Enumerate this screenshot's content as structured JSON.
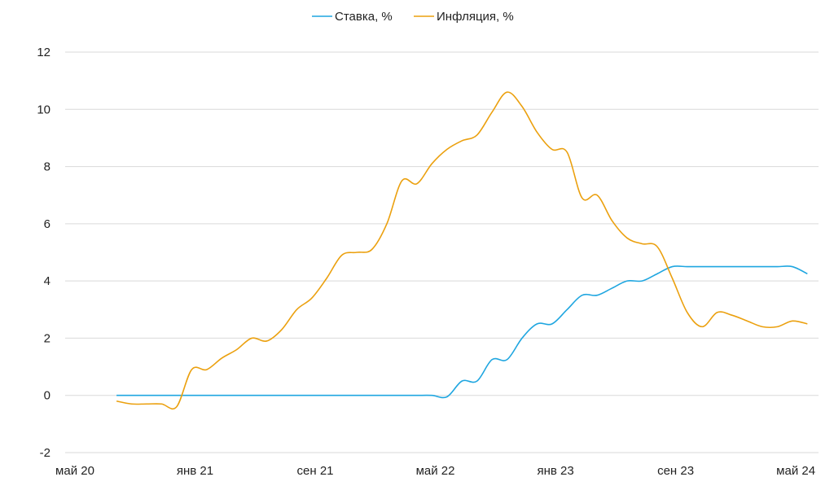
{
  "chart_data": {
    "type": "line",
    "title": "",
    "xlabel": "",
    "ylabel": "",
    "ylim": [
      -2,
      12
    ],
    "y_ticks": [
      "-2",
      "0",
      "2",
      "4",
      "6",
      "8",
      "10",
      "12"
    ],
    "x_tick_labels": [
      "май 20",
      "янв 21",
      "сен 21",
      "май 22",
      "янв 23",
      "сен 23",
      "май 24"
    ],
    "x_start_month": "2020-08",
    "legend_position": "top-center",
    "grid": true,
    "series": [
      {
        "name": "Ставка, %",
        "color": "#1FA6E0",
        "values": [
          0,
          0,
          0,
          0,
          0,
          0,
          0,
          0,
          0,
          0,
          0,
          0,
          0,
          0,
          0,
          0,
          0,
          0,
          0,
          0,
          0,
          0,
          -0.05,
          0.5,
          0.5,
          1.25,
          1.25,
          2.0,
          2.5,
          2.5,
          3.0,
          3.5,
          3.5,
          3.75,
          4.0,
          4.0,
          4.25,
          4.5,
          4.5,
          4.5,
          4.5,
          4.5,
          4.5,
          4.5,
          4.5,
          4.5,
          4.25
        ]
      },
      {
        "name": "Инфляция, %",
        "color": "#EBA00E",
        "values": [
          -0.2,
          -0.3,
          -0.3,
          -0.3,
          -0.4,
          0.9,
          0.9,
          1.3,
          1.6,
          2.0,
          1.9,
          2.3,
          3.0,
          3.4,
          4.1,
          4.9,
          5.0,
          5.1,
          6.0,
          7.5,
          7.4,
          8.1,
          8.6,
          8.9,
          9.1,
          9.9,
          10.6,
          10.1,
          9.2,
          8.6,
          8.5,
          6.9,
          7.0,
          6.1,
          5.5,
          5.3,
          5.2,
          4.1,
          2.9,
          2.4,
          2.9,
          2.8,
          2.6,
          2.4,
          2.4,
          2.6,
          2.5
        ]
      }
    ]
  }
}
